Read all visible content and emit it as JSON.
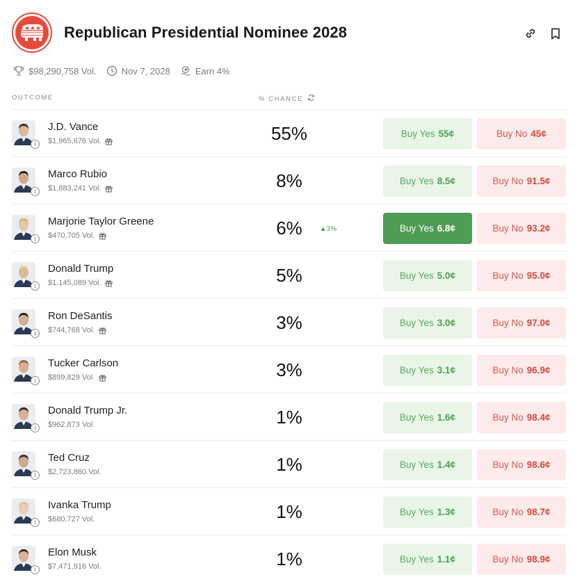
{
  "market": {
    "title": "Republican Presidential Nominee 2028",
    "volume": "$98,290,758 Vol.",
    "end_date": "Nov 7, 2028",
    "earn": "Earn 4%"
  },
  "columns": {
    "outcome": "OUTCOME",
    "chance": "% CHANCE"
  },
  "colors": {
    "yes": "#4f9c55",
    "no": "#cf4a3d",
    "brand": "#e54b3c"
  },
  "outcomes": [
    {
      "name": "J.D. Vance",
      "volume": "$1,965,676 Vol.",
      "gift": true,
      "chance": "55%",
      "yes_label": "Buy Yes",
      "yes_price": "55¢",
      "no_label": "Buy No",
      "no_price": "45¢"
    },
    {
      "name": "Marco Rubio",
      "volume": "$1,883,241 Vol.",
      "gift": true,
      "chance": "8%",
      "yes_label": "Buy Yes",
      "yes_price": "8.5¢",
      "no_label": "Buy No",
      "no_price": "91.5¢"
    },
    {
      "name": "Marjorie Taylor Greene",
      "volume": "$470,705 Vol.",
      "gift": true,
      "chance": "6%",
      "delta": "▲3%",
      "yes_label": "Buy Yes",
      "yes_price": "6.8¢",
      "no_label": "Buy No",
      "no_price": "93.2¢",
      "active": true
    },
    {
      "name": "Donald Trump",
      "volume": "$1,145,089 Vol.",
      "gift": true,
      "chance": "5%",
      "yes_label": "Buy Yes",
      "yes_price": "5.0¢",
      "no_label": "Buy No",
      "no_price": "95.0¢"
    },
    {
      "name": "Ron DeSantis",
      "volume": "$744,768 Vol.",
      "gift": true,
      "chance": "3%",
      "yes_label": "Buy Yes",
      "yes_price": "3.0¢",
      "no_label": "Buy No",
      "no_price": "97.0¢"
    },
    {
      "name": "Tucker Carlson",
      "volume": "$899,829 Vol.",
      "gift": true,
      "chance": "3%",
      "yes_label": "Buy Yes",
      "yes_price": "3.1¢",
      "no_label": "Buy No",
      "no_price": "96.9¢"
    },
    {
      "name": "Donald Trump Jr.",
      "volume": "$962,873 Vol.",
      "gift": false,
      "chance": "1%",
      "yes_label": "Buy Yes",
      "yes_price": "1.6¢",
      "no_label": "Buy No",
      "no_price": "98.4¢"
    },
    {
      "name": "Ted Cruz",
      "volume": "$2,723,860 Vol.",
      "gift": false,
      "chance": "1%",
      "yes_label": "Buy Yes",
      "yes_price": "1.4¢",
      "no_label": "Buy No",
      "no_price": "98.6¢"
    },
    {
      "name": "Ivanka Trump",
      "volume": "$680,727 Vol.",
      "gift": false,
      "chance": "1%",
      "yes_label": "Buy Yes",
      "yes_price": "1.3¢",
      "no_label": "Buy No",
      "no_price": "98.7¢"
    },
    {
      "name": "Elon Musk",
      "volume": "$7,471,916 Vol.",
      "gift": false,
      "chance": "1%",
      "yes_label": "Buy Yes",
      "yes_price": "1.1¢",
      "no_label": "Buy No",
      "no_price": "98.9¢"
    }
  ]
}
